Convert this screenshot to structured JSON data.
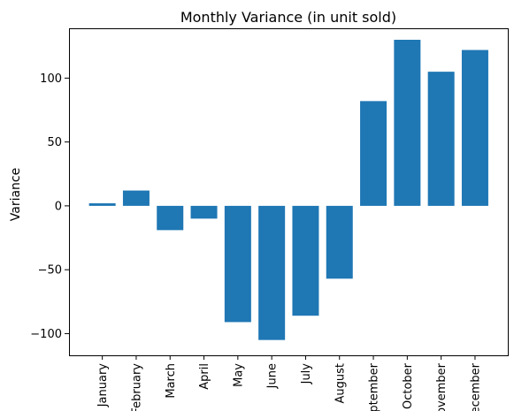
{
  "chart_data": {
    "type": "bar",
    "title": "Monthly Variance (in unit sold)",
    "xlabel": "",
    "ylabel": "Variance",
    "categories": [
      "January",
      "February",
      "March",
      "April",
      "May",
      "June",
      "July",
      "August",
      "September",
      "October",
      "November",
      "December"
    ],
    "values": [
      2,
      12,
      -19,
      -10,
      -91,
      -105,
      -86,
      -57,
      82,
      130,
      105,
      122
    ],
    "yticks": [
      -100,
      -50,
      0,
      50,
      100
    ],
    "ytick_labels": [
      "−100",
      "−50",
      "0",
      "50",
      "100"
    ],
    "ylim": [
      -117,
      139
    ],
    "grid": false,
    "bar_color": "#1f77b4"
  }
}
